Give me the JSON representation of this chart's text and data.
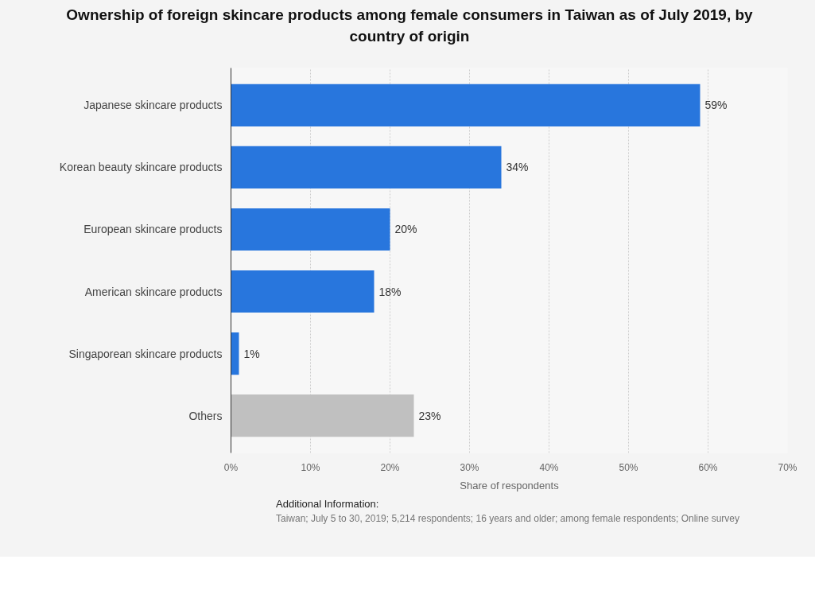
{
  "chart_data": {
    "type": "bar",
    "orientation": "horizontal",
    "title": "Ownership of foreign skincare products among female consumers in Taiwan as of July 2019, by country of origin",
    "xlabel": "Share of respondents",
    "categories": [
      "Japanese skincare products",
      "Korean beauty skincare products",
      "European skincare products",
      "American skincare products",
      "Singaporean skincare products",
      "Others"
    ],
    "values": [
      59,
      34,
      20,
      18,
      1,
      23
    ],
    "value_labels": [
      "59%",
      "34%",
      "20%",
      "18%",
      "1%",
      "23%"
    ],
    "colors": [
      "#2876dd",
      "#2876dd",
      "#2876dd",
      "#2876dd",
      "#2876dd",
      "#c0c0c0"
    ],
    "xlim": [
      0,
      70
    ],
    "xticks": [
      {
        "value": 0,
        "label": "0%"
      },
      {
        "value": 10,
        "label": "10%"
      },
      {
        "value": 20,
        "label": "20%"
      },
      {
        "value": 30,
        "label": "30%"
      },
      {
        "value": 40,
        "label": "40%"
      },
      {
        "value": 50,
        "label": "50%"
      },
      {
        "value": 60,
        "label": "60%"
      },
      {
        "value": 70,
        "label": "70%"
      }
    ],
    "grid": "x",
    "annotations": [
      "Additional Information:",
      "Taiwan; July 5 to 30, 2019; 5,214 respondents; 16 years and older; among female respondents; Online survey"
    ]
  }
}
